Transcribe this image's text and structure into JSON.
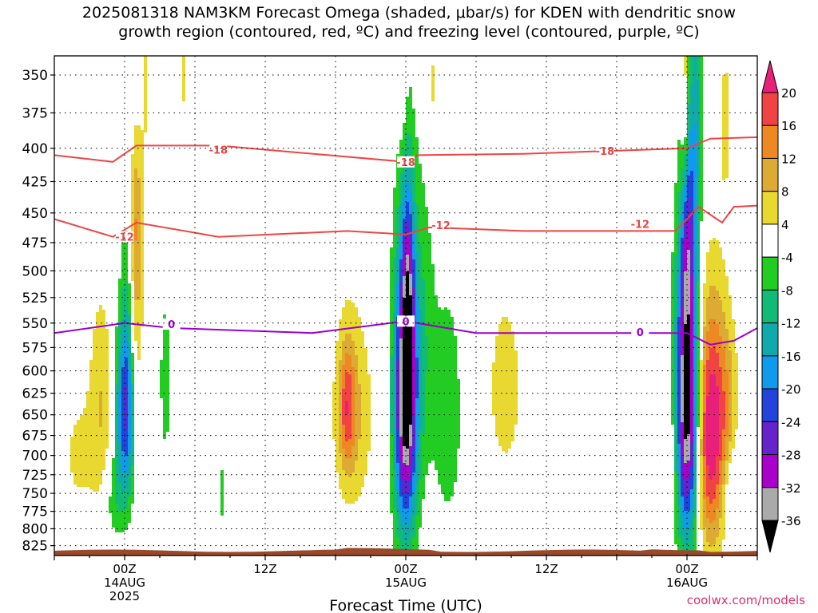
{
  "title": {
    "line1": "2025081318 NAM3KM Forecast Omega (shaded, μbar/s) for KDEN with dendritic snow",
    "line2": "growth region (contoured, red, ºC) and freezing level (contoured, purple, ºC)"
  },
  "credit": "coolwx.com/models",
  "colors": {
    "dgz_contour": "#ee4444",
    "freezing_contour": "#9900cc",
    "terrain": "#9a4a2a"
  },
  "chart_data": {
    "type": "heatmap",
    "xlabel": "Forecast Time (UTC)",
    "ylabel": "",
    "x_ticks": [
      {
        "t": 6,
        "label": "00Z",
        "sub": [
          "14AUG",
          "2025"
        ]
      },
      {
        "t": 18,
        "label": "12Z",
        "sub": []
      },
      {
        "t": 30,
        "label": "00Z",
        "sub": [
          "15AUG"
        ]
      },
      {
        "t": 42,
        "label": "12Z",
        "sub": []
      },
      {
        "t": 54,
        "label": "00Z",
        "sub": [
          "16AUG"
        ]
      }
    ],
    "xlim": [
      0,
      60
    ],
    "y_ticks": [
      350,
      375,
      400,
      425,
      450,
      475,
      500,
      525,
      550,
      575,
      600,
      625,
      650,
      675,
      700,
      725,
      750,
      775,
      800,
      825
    ],
    "ylim_hpa": [
      338,
      840
    ],
    "y_scale": "log",
    "grid": true,
    "colorbar": {
      "labels": [
        "20",
        "16",
        "12",
        "8",
        "4",
        "-4",
        "-8",
        "-12",
        "-16",
        "-20",
        "-24",
        "-28",
        "-32",
        "-36"
      ],
      "bins": [
        {
          "lo": 20,
          "hi": 99,
          "color": "#e8207a"
        },
        {
          "lo": 16,
          "hi": 20,
          "color": "#f04444"
        },
        {
          "lo": 12,
          "hi": 16,
          "color": "#ee8822"
        },
        {
          "lo": 8,
          "hi": 12,
          "color": "#ddaa33"
        },
        {
          "lo": 4,
          "hi": 8,
          "color": "#e8d830"
        },
        {
          "lo": -4,
          "hi": 4,
          "color": "#ffffff"
        },
        {
          "lo": -8,
          "hi": -4,
          "color": "#22cc22"
        },
        {
          "lo": -12,
          "hi": -8,
          "color": "#11bb77"
        },
        {
          "lo": -16,
          "hi": -12,
          "color": "#11aaaa"
        },
        {
          "lo": -20,
          "hi": -16,
          "color": "#1199ee"
        },
        {
          "lo": -24,
          "hi": -20,
          "color": "#2244dd"
        },
        {
          "lo": -28,
          "hi": -24,
          "color": "#6622cc"
        },
        {
          "lo": -32,
          "hi": -28,
          "color": "#aa00cc"
        },
        {
          "lo": -36,
          "hi": -32,
          "color": "#aaaaaa"
        },
        {
          "lo": -99,
          "hi": -36,
          "color": "#000000"
        }
      ]
    },
    "omega_features": [
      {
        "t": 6.0,
        "p": 650,
        "dt": 0.8,
        "dp": 110,
        "v": -22
      },
      {
        "t": 6.2,
        "p": 560,
        "dt": 0.5,
        "dp": 150,
        "v": -6
      },
      {
        "t": 7.0,
        "p": 520,
        "dt": 0.6,
        "dp": 120,
        "v": 9
      },
      {
        "t": 7.0,
        "p": 450,
        "dt": 0.5,
        "dp": 60,
        "v": 6
      },
      {
        "t": 4.0,
        "p": 640,
        "dt": 1.1,
        "dp": 130,
        "v": 8
      },
      {
        "t": 2.0,
        "p": 700,
        "dt": 1.3,
        "dp": 80,
        "v": 5
      },
      {
        "t": 5.0,
        "p": 760,
        "dt": 0.8,
        "dp": 60,
        "v": -6
      },
      {
        "t": 9.5,
        "p": 610,
        "dt": 0.6,
        "dp": 110,
        "v": -6
      },
      {
        "t": 7.8,
        "p": 350,
        "dt": 0.4,
        "dp": 60,
        "v": 5
      },
      {
        "t": 11.0,
        "p": 350,
        "dt": 0.3,
        "dp": 40,
        "v": 5
      },
      {
        "t": 14.3,
        "p": 750,
        "dt": 0.25,
        "dp": 50,
        "v": -6
      },
      {
        "t": 25.5,
        "p": 650,
        "dt": 1.8,
        "dp": 130,
        "v": 8
      },
      {
        "t": 25.0,
        "p": 640,
        "dt": 0.7,
        "dp": 70,
        "v": 13
      },
      {
        "t": 30.0,
        "p": 630,
        "dt": 1.0,
        "dp": 170,
        "v": -40
      },
      {
        "t": 30.2,
        "p": 520,
        "dt": 0.5,
        "dp": 110,
        "v": -14
      },
      {
        "t": 31.6,
        "p": 560,
        "dt": 1.0,
        "dp": 160,
        "v": -6
      },
      {
        "t": 29.7,
        "p": 340,
        "dt": 0.4,
        "dp": 50,
        "v": 6
      },
      {
        "t": 32.3,
        "p": 360,
        "dt": 0.4,
        "dp": 60,
        "v": 5
      },
      {
        "t": 33.6,
        "p": 650,
        "dt": 1.3,
        "dp": 150,
        "v": -7
      },
      {
        "t": 38.5,
        "p": 620,
        "dt": 1.7,
        "dp": 120,
        "v": 6
      },
      {
        "t": 52.8,
        "p": 700,
        "dt": 0.9,
        "dp": 100,
        "v": 6
      },
      {
        "t": 54.0,
        "p": 640,
        "dt": 1.0,
        "dp": 170,
        "v": -42
      },
      {
        "t": 54.1,
        "p": 470,
        "dt": 0.6,
        "dp": 90,
        "v": -15
      },
      {
        "t": 54.8,
        "p": 370,
        "dt": 0.6,
        "dp": 90,
        "v": -12
      },
      {
        "t": 56.0,
        "p": 670,
        "dt": 1.3,
        "dp": 150,
        "v": 24
      },
      {
        "t": 53.8,
        "p": 360,
        "dt": 0.3,
        "dp": 70,
        "v": 10
      },
      {
        "t": 57.5,
        "p": 640,
        "dt": 1.0,
        "dp": 110,
        "v": 7
      },
      {
        "t": 57.3,
        "p": 380,
        "dt": 0.6,
        "dp": 70,
        "v": 5
      },
      {
        "t": 57.8,
        "p": 740,
        "dt": 1.0,
        "dp": 60,
        "v": -6
      }
    ],
    "contours": [
      {
        "label": "-18",
        "kind": "dgz",
        "points": [
          [
            0,
            405
          ],
          [
            5,
            410
          ],
          [
            7,
            398
          ],
          [
            14,
            398
          ],
          [
            30,
            410
          ],
          [
            31,
            405
          ],
          [
            40,
            404
          ],
          [
            54,
            400
          ],
          [
            56,
            393
          ],
          [
            60,
            392
          ]
        ],
        "label_at": [
          [
            14,
            401
          ],
          [
            30,
            410
          ],
          [
            47,
            402
          ]
        ]
      },
      {
        "label": "-12",
        "kind": "dgz",
        "points": [
          [
            0,
            455
          ],
          [
            5,
            470
          ],
          [
            7,
            458
          ],
          [
            14,
            470
          ],
          [
            25,
            465
          ],
          [
            30,
            468
          ],
          [
            32,
            462
          ],
          [
            40,
            465
          ],
          [
            53,
            465
          ],
          [
            55,
            445
          ],
          [
            57,
            458
          ],
          [
            58,
            445
          ],
          [
            60,
            444
          ]
        ],
        "label_at": [
          [
            6,
            470
          ],
          [
            33,
            460
          ],
          [
            50,
            459
          ]
        ]
      },
      {
        "label": "0",
        "kind": "freezing",
        "points": [
          [
            0,
            560
          ],
          [
            6,
            550
          ],
          [
            10,
            555
          ],
          [
            22,
            560
          ],
          [
            30,
            548
          ],
          [
            36,
            560
          ],
          [
            54,
            560
          ],
          [
            56,
            572
          ],
          [
            58,
            568
          ],
          [
            60,
            555
          ]
        ],
        "label_at": [
          [
            10,
            551
          ],
          [
            30,
            548
          ],
          [
            50,
            559
          ]
        ]
      }
    ]
  }
}
